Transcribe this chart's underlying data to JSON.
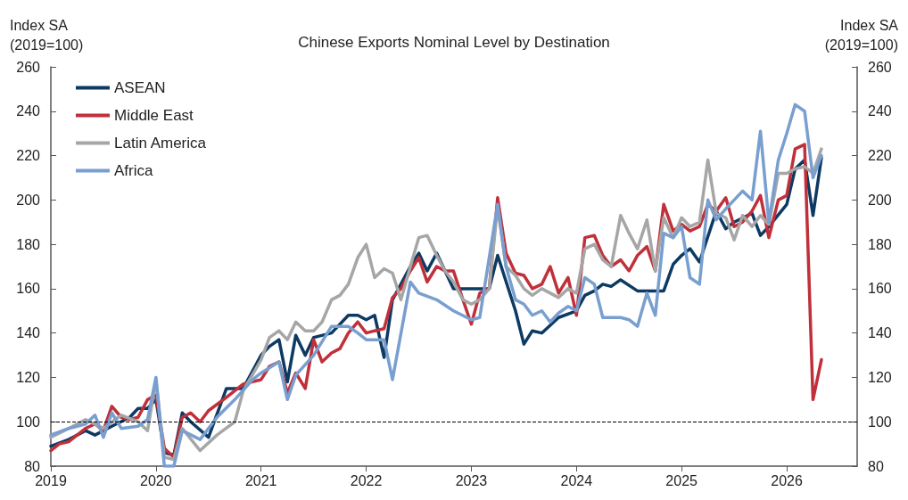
{
  "chart_data": {
    "type": "line",
    "title": "Chinese Exports Nominal Level by Destination",
    "ylabel": "Index SA\n(2019=100)",
    "y2label": "Index SA\n(2019=100)",
    "xlim": [
      2019,
      2026.67
    ],
    "xticks": [
      2019,
      2020,
      2021,
      2022,
      2023,
      2024,
      2025,
      2026
    ],
    "ylim": [
      80,
      260
    ],
    "yticks": [
      80,
      100,
      120,
      140,
      160,
      180,
      200,
      220,
      240,
      260
    ],
    "y2lim": [
      80,
      260
    ],
    "y2ticks": [
      80,
      100,
      120,
      140,
      160,
      180,
      200,
      220,
      240,
      260
    ],
    "grid": false,
    "legend": "top left",
    "marker": "none",
    "line_style": "solid",
    "ref_lines": [
      {
        "axis": "y",
        "value": 100,
        "color": "#000000",
        "line_style": "dashed"
      }
    ],
    "series": [
      {
        "name": "ASEAN",
        "color": "#0d3a63",
        "x": [
          2019.0,
          2019.17,
          2019.33,
          2019.42,
          2019.58,
          2019.75,
          2019.83,
          2019.92,
          2020.0,
          2020.08,
          2020.17,
          2020.25,
          2020.33,
          2020.5,
          2020.67,
          2020.83,
          2021.0,
          2021.08,
          2021.17,
          2021.25,
          2021.33,
          2021.42,
          2021.5,
          2021.67,
          2021.83,
          2021.92,
          2022.0,
          2022.08,
          2022.17,
          2022.25,
          2022.42,
          2022.5,
          2022.58,
          2022.67,
          2022.83,
          2023.0,
          2023.17,
          2023.25,
          2023.42,
          2023.5,
          2023.58,
          2023.67,
          2023.83,
          2024.0,
          2024.08,
          2024.17,
          2024.25,
          2024.33,
          2024.42,
          2024.58,
          2024.83,
          2024.92,
          2025.0,
          2025.08,
          2025.17,
          2025.33,
          2025.42,
          2025.5,
          2025.67,
          2025.75,
          2025.83,
          2026.0,
          2026.08,
          2026.17,
          2026.25,
          2026.33
        ],
        "values": [
          89,
          92,
          96,
          94,
          98,
          102,
          106,
          106,
          110,
          86,
          85,
          104,
          100,
          93,
          115,
          115,
          130,
          134,
          137,
          118,
          139,
          130,
          138,
          140,
          148,
          148,
          146,
          148,
          129,
          155,
          170,
          176,
          168,
          176,
          160,
          160,
          160,
          175,
          150,
          135,
          141,
          140,
          147,
          150,
          157,
          159,
          162,
          161,
          164,
          159,
          159,
          171,
          175,
          178,
          172,
          195,
          187,
          190,
          194,
          184,
          188,
          198,
          214,
          218,
          193,
          219
        ]
      },
      {
        "name": "Middle East",
        "color": "#c0303a",
        "x": [
          2019.0,
          2019.08,
          2019.17,
          2019.33,
          2019.42,
          2019.5,
          2019.58,
          2019.67,
          2019.75,
          2019.83,
          2019.92,
          2020.0,
          2020.08,
          2020.17,
          2020.25,
          2020.33,
          2020.42,
          2020.5,
          2020.67,
          2020.83,
          2021.0,
          2021.08,
          2021.17,
          2021.25,
          2021.33,
          2021.42,
          2021.5,
          2021.58,
          2021.67,
          2021.75,
          2021.83,
          2021.92,
          2022.0,
          2022.08,
          2022.17,
          2022.25,
          2022.33,
          2022.42,
          2022.5,
          2022.58,
          2022.67,
          2022.75,
          2022.83,
          2022.92,
          2023.0,
          2023.08,
          2023.17,
          2023.25,
          2023.33,
          2023.42,
          2023.5,
          2023.58,
          2023.67,
          2023.75,
          2023.83,
          2023.92,
          2024.0,
          2024.08,
          2024.17,
          2024.25,
          2024.33,
          2024.42,
          2024.5,
          2024.58,
          2024.67,
          2024.75,
          2024.83,
          2024.92,
          2025.0,
          2025.08,
          2025.17,
          2025.25,
          2025.33,
          2025.42,
          2025.5,
          2025.58,
          2025.67,
          2025.75,
          2025.83,
          2025.92,
          2026.0,
          2026.08,
          2026.17,
          2026.25,
          2026.33
        ],
        "values": [
          87,
          90,
          91,
          97,
          99,
          96,
          107,
          102,
          101,
          102,
          110,
          112,
          88,
          84,
          102,
          104,
          100,
          105,
          111,
          117,
          119,
          125,
          127,
          113,
          122,
          115,
          137,
          127,
          131,
          133,
          140,
          145,
          140,
          141,
          142,
          156,
          160,
          168,
          174,
          163,
          170,
          168,
          168,
          155,
          144,
          158,
          160,
          201,
          176,
          167,
          166,
          160,
          162,
          170,
          158,
          165,
          148,
          183,
          184,
          175,
          170,
          173,
          168,
          175,
          179,
          168,
          198,
          186,
          189,
          186,
          188,
          198,
          195,
          201,
          188,
          190,
          195,
          202,
          183,
          200,
          202,
          223,
          225,
          110,
          128
        ]
      },
      {
        "name": "Latin America",
        "color": "#a6a6a6",
        "x": [
          2019.0,
          2019.17,
          2019.33,
          2019.5,
          2019.67,
          2019.83,
          2019.92,
          2020.0,
          2020.08,
          2020.17,
          2020.25,
          2020.42,
          2020.58,
          2020.75,
          2020.83,
          2021.0,
          2021.08,
          2021.17,
          2021.25,
          2021.33,
          2021.42,
          2021.5,
          2021.58,
          2021.67,
          2021.75,
          2021.83,
          2021.92,
          2022.0,
          2022.08,
          2022.17,
          2022.25,
          2022.33,
          2022.42,
          2022.5,
          2022.58,
          2022.67,
          2022.75,
          2022.83,
          2022.92,
          2023.0,
          2023.08,
          2023.17,
          2023.25,
          2023.33,
          2023.42,
          2023.5,
          2023.58,
          2023.67,
          2023.75,
          2023.83,
          2023.92,
          2024.0,
          2024.08,
          2024.17,
          2024.25,
          2024.33,
          2024.42,
          2024.5,
          2024.58,
          2024.67,
          2024.75,
          2024.83,
          2024.92,
          2025.0,
          2025.08,
          2025.17,
          2025.25,
          2025.33,
          2025.42,
          2025.5,
          2025.58,
          2025.67,
          2025.75,
          2025.83,
          2025.92,
          2026.0,
          2026.08,
          2026.17,
          2026.25,
          2026.33
        ],
        "values": [
          93,
          97,
          101,
          97,
          103,
          100,
          96,
          119,
          84,
          83,
          97,
          87,
          94,
          100,
          114,
          128,
          138,
          141,
          137,
          145,
          141,
          141,
          145,
          155,
          157,
          162,
          174,
          180,
          165,
          169,
          167,
          155,
          170,
          183,
          184,
          175,
          168,
          163,
          155,
          153,
          155,
          160,
          197,
          170,
          166,
          160,
          157,
          160,
          158,
          156,
          160,
          158,
          178,
          180,
          173,
          170,
          193,
          185,
          178,
          191,
          168,
          192,
          183,
          192,
          188,
          190,
          218,
          194,
          192,
          182,
          193,
          188,
          193,
          189,
          212,
          212,
          214,
          215,
          212,
          223
        ]
      },
      {
        "name": "Africa",
        "color": "#789fd0",
        "x": [
          2019.0,
          2019.17,
          2019.33,
          2019.42,
          2019.5,
          2019.58,
          2019.67,
          2019.83,
          2019.92,
          2020.0,
          2020.08,
          2020.17,
          2020.25,
          2020.42,
          2020.58,
          2020.75,
          2020.92,
          2021.0,
          2021.17,
          2021.25,
          2021.33,
          2021.5,
          2021.67,
          2021.83,
          2021.92,
          2022.0,
          2022.17,
          2022.25,
          2022.42,
          2022.5,
          2022.67,
          2022.83,
          2023.0,
          2023.08,
          2023.25,
          2023.33,
          2023.42,
          2023.5,
          2023.58,
          2023.67,
          2023.75,
          2023.83,
          2023.92,
          2024.0,
          2024.08,
          2024.17,
          2024.25,
          2024.42,
          2024.5,
          2024.58,
          2024.67,
          2024.75,
          2024.83,
          2024.92,
          2025.0,
          2025.08,
          2025.17,
          2025.25,
          2025.33,
          2025.42,
          2025.5,
          2025.58,
          2025.67,
          2025.75,
          2025.83,
          2025.92,
          2026.0,
          2026.08,
          2026.17,
          2026.25,
          2026.33
        ],
        "values": [
          94,
          97,
          99,
          103,
          93,
          104,
          97,
          98,
          101,
          120,
          80,
          80,
          96,
          92,
          102,
          110,
          119,
          122,
          127,
          110,
          121,
          130,
          143,
          143,
          140,
          137,
          137,
          119,
          163,
          158,
          155,
          150,
          146,
          147,
          198,
          170,
          155,
          153,
          148,
          150,
          145,
          149,
          152,
          150,
          165,
          162,
          147,
          147,
          146,
          143,
          158,
          148,
          185,
          183,
          188,
          165,
          162,
          200,
          191,
          196,
          200,
          204,
          200,
          231,
          190,
          218,
          230,
          243,
          240,
          210,
          220
        ]
      }
    ]
  }
}
